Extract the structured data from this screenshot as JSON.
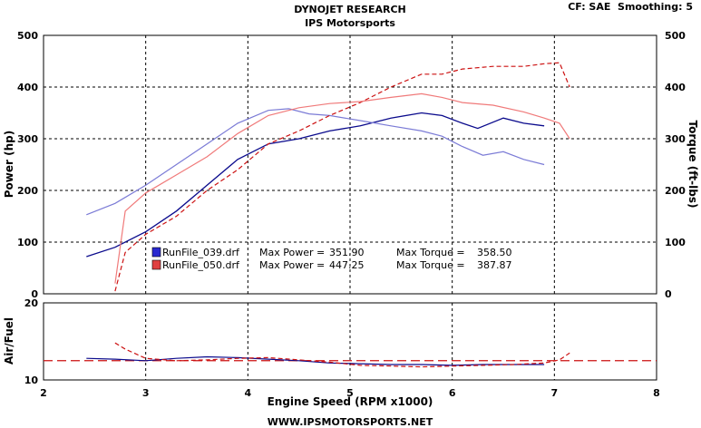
{
  "header": {
    "title": "DYNOJET RESEARCH",
    "subtitle": "IPS Motorsports",
    "settings": "CF: SAE  Smoothing: 5"
  },
  "footer": {
    "url": "WWW.IPSMOTORSPORTS.NET"
  },
  "colors": {
    "run039": "#0a0a8c",
    "run039_light": "#7b7bd6",
    "run050": "#cc1111",
    "run050_light": "#f07a7a",
    "afr_ref": "#cc1111"
  },
  "chart_data": [
    {
      "type": "line",
      "name": "power-torque",
      "xlabel": "",
      "ylabel": "Power (hp)",
      "y2label": "Torque (ft-lbs)",
      "xlim": [
        2,
        8
      ],
      "ylim": [
        0,
        500
      ],
      "y2lim": [
        0,
        500
      ],
      "xticks": [
        2,
        3,
        4,
        5,
        6,
        7,
        8
      ],
      "yticks": [
        0,
        100,
        200,
        300,
        400,
        500
      ],
      "grid": true,
      "legend": [
        {
          "file": "RunFile_039.drf",
          "max_power_label": "Max Power =",
          "max_power": "351.90",
          "max_torque_label": "Max Torque =",
          "max_torque": "358.50"
        },
        {
          "file": "RunFile_050.drf",
          "max_power_label": "Max Power =",
          "max_power": "447.25",
          "max_torque_label": "Max Torque =",
          "max_torque": "387.87"
        }
      ],
      "series": [
        {
          "name": "RunFile_039.drf",
          "kind": "power",
          "x": [
            2.42,
            2.7,
            3.0,
            3.3,
            3.6,
            3.9,
            4.2,
            4.5,
            4.8,
            5.1,
            5.4,
            5.7,
            5.9,
            6.1,
            6.25,
            6.5,
            6.7,
            6.9
          ],
          "y": [
            72,
            90,
            120,
            160,
            210,
            260,
            290,
            300,
            315,
            325,
            340,
            350,
            345,
            330,
            320,
            340,
            330,
            325
          ]
        },
        {
          "name": "RunFile_039.drf",
          "kind": "torque",
          "x": [
            2.42,
            2.7,
            3.0,
            3.3,
            3.6,
            3.9,
            4.2,
            4.4,
            4.6,
            4.8,
            5.1,
            5.4,
            5.7,
            5.9,
            6.1,
            6.3,
            6.5,
            6.7,
            6.9
          ],
          "y": [
            153,
            175,
            210,
            250,
            290,
            330,
            355,
            358,
            348,
            345,
            335,
            325,
            315,
            305,
            285,
            268,
            275,
            260,
            250
          ]
        },
        {
          "name": "RunFile_050.drf",
          "kind": "power",
          "x": [
            2.7,
            2.8,
            3.0,
            3.3,
            3.6,
            3.9,
            4.2,
            4.5,
            4.8,
            5.1,
            5.4,
            5.7,
            5.9,
            6.1,
            6.4,
            6.7,
            6.9,
            7.05,
            7.15
          ],
          "y": [
            5,
            80,
            115,
            150,
            200,
            240,
            290,
            315,
            345,
            370,
            400,
            425,
            425,
            435,
            440,
            440,
            445,
            447,
            400
          ]
        },
        {
          "name": "RunFile_050.drf",
          "kind": "torque",
          "x": [
            2.7,
            2.8,
            3.0,
            3.3,
            3.6,
            3.9,
            4.2,
            4.5,
            4.8,
            5.1,
            5.4,
            5.7,
            5.9,
            6.1,
            6.4,
            6.7,
            6.9,
            7.05,
            7.15
          ],
          "y": [
            20,
            160,
            195,
            230,
            265,
            310,
            345,
            360,
            368,
            372,
            380,
            387,
            380,
            370,
            365,
            352,
            340,
            330,
            300
          ]
        }
      ]
    },
    {
      "type": "line",
      "name": "air-fuel",
      "xlabel": "Engine Speed (RPM x1000)",
      "ylabel": "Air/Fuel",
      "xlim": [
        2,
        8
      ],
      "ylim": [
        10,
        20
      ],
      "xticks": [
        2,
        3,
        4,
        5,
        6,
        7,
        8
      ],
      "yticks": [
        10,
        20
      ],
      "grid": true,
      "reference_line": 12.5,
      "series": [
        {
          "name": "RunFile_039.drf",
          "x": [
            2.42,
            2.7,
            3.0,
            3.3,
            3.6,
            3.9,
            4.2,
            4.5,
            4.8,
            5.1,
            5.4,
            5.7,
            6.0,
            6.3,
            6.6,
            6.9
          ],
          "y": [
            12.8,
            12.7,
            12.5,
            12.8,
            13.0,
            12.9,
            12.7,
            12.5,
            12.2,
            12.1,
            12.0,
            12.0,
            11.9,
            12.0,
            12.0,
            12.0
          ]
        },
        {
          "name": "RunFile_050.drf",
          "x": [
            2.7,
            2.8,
            3.0,
            3.3,
            3.6,
            3.9,
            4.2,
            4.5,
            4.8,
            5.1,
            5.4,
            5.7,
            6.0,
            6.3,
            6.6,
            6.9,
            7.05,
            7.15
          ],
          "y": [
            14.8,
            14.0,
            12.8,
            12.5,
            12.6,
            12.8,
            12.9,
            12.6,
            12.3,
            11.9,
            11.8,
            11.7,
            11.8,
            11.9,
            12.0,
            12.2,
            12.6,
            13.5
          ]
        }
      ]
    }
  ]
}
